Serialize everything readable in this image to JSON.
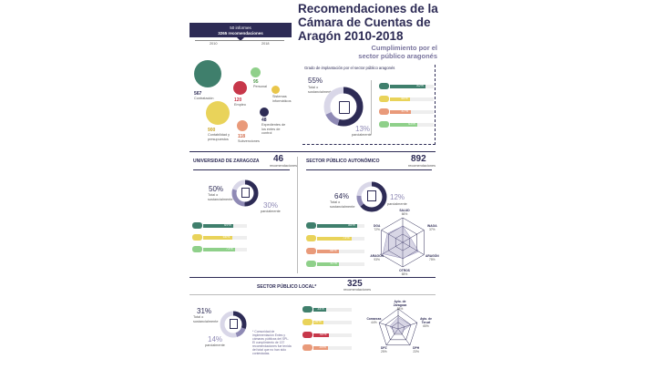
{
  "header": {
    "title_lines": [
      "Recomendaciones de la",
      "Cámara de Cuentas de",
      "Aragón 2010-2018"
    ],
    "subtitle_lines": [
      "Cumplimiento por el",
      "sector público aragonés"
    ]
  },
  "banner": {
    "line1": "50 informes",
    "line2": "3265 recomendaciones"
  },
  "timeline": {
    "start": "2010",
    "end": "2018"
  },
  "categories": [
    {
      "value": "567",
      "label": "Contratación",
      "color": "#3f7f6c"
    },
    {
      "value": "120",
      "label": "Empleo",
      "color": "#c7374a"
    },
    {
      "value": "95",
      "label": "Personal",
      "color": "#8fd08a"
    },
    {
      "value": "85",
      "label": "Sistemas informáticos",
      "color": "#e9c64a"
    },
    {
      "value": "900",
      "label": "Contabilidad y presupuestos",
      "color": "#e9d35a"
    },
    {
      "value": "48",
      "label": "Expedientes de los entes de control",
      "color": "#2d2b55"
    },
    {
      "value": "118",
      "label": "Subvenciones",
      "color": "#e99a7a"
    }
  ],
  "overall": {
    "heading": "Grado de implantación por el sector público aragonés",
    "total_pct": "55%",
    "total_label": "Total o sustancialmente",
    "partial_pct": "13%",
    "partial_label": "parcialmente",
    "bars": [
      {
        "pct": "82%",
        "value": 82,
        "color": "#3f7f6c"
      },
      {
        "pct": "46%",
        "value": 46,
        "color": "#e9d35a"
      },
      {
        "pct": "47%",
        "value": 47,
        "color": "#e99a7a"
      },
      {
        "pct": "63%",
        "value": 63,
        "color": "#8fd08a"
      }
    ]
  },
  "uz": {
    "name": "UNIVERSIDAD DE ZARAGOZA",
    "count": "46",
    "count_label": "recomendaciones",
    "total_pct": "50%",
    "total_label": "Total o sustancialmente",
    "partial_pct": "30%",
    "partial_label": "parcialmente",
    "bars": [
      {
        "pct": "69%",
        "value": 69,
        "color": "#3f7f6c"
      },
      {
        "pct": "66%",
        "value": 66,
        "color": "#e9d35a"
      },
      {
        "pct": "73%",
        "value": 73,
        "color": "#8fd08a"
      }
    ]
  },
  "spa": {
    "name": "SECTOR PÚBLICO AUTONÓMICO",
    "count": "892",
    "count_label": "recomendaciones",
    "total_pct": "64%",
    "total_label": "Total o sustancialmente",
    "partial_pct": "12%",
    "partial_label": "parcialmente",
    "bars": [
      {
        "pct": "85%",
        "value": 85,
        "color": "#3f7f6c"
      },
      {
        "pct": "73%",
        "value": 73,
        "color": "#e9d35a"
      },
      {
        "pct": "46%",
        "value": 46,
        "color": "#e99a7a"
      },
      {
        "pct": "47%",
        "value": 47,
        "color": "#8fd08a"
      }
    ],
    "radar": [
      {
        "name": "SALUD",
        "pct": "66%"
      },
      {
        "name": "INAGA",
        "pct": "37%"
      },
      {
        "name": "ARAGÓN",
        "pct": "75%"
      },
      {
        "name": "OTROS",
        "pct": "65%"
      },
      {
        "name": "ARAGÓN",
        "pct": "93%"
      },
      {
        "name": "DGA",
        "pct": "72%"
      }
    ]
  },
  "spl": {
    "name": "SECTOR PÚBLICO LOCAL*",
    "count": "325",
    "count_label": "recomendaciones",
    "total_pct": "31%",
    "total_label": "Total o sustancialmente",
    "partial_pct": "14%",
    "partial_label": "parcialmente",
    "note": "* Comunidad de implementación Entes y cámaras públicas del SPL. El cumplimiento de 137 recomendaciones fue tenida del total que no han sido contestadas.",
    "bars": [
      {
        "pct": "34%",
        "value": 34,
        "color": "#3f7f6c"
      },
      {
        "pct": "26%",
        "value": 26,
        "color": "#e9d35a"
      },
      {
        "pct": "40%",
        "value": 40,
        "color": "#c7374a"
      },
      {
        "pct": "39%",
        "value": 39,
        "color": "#e99a7a"
      }
    ],
    "radar": [
      {
        "name": "Ayto. de Zaragoza",
        "pct": "58%"
      },
      {
        "name": "Ayto. de Teruel",
        "pct": "65%"
      },
      {
        "name": "DPH",
        "pct": "23%"
      },
      {
        "name": "DPZ",
        "pct": "25%"
      },
      {
        "name": "Comarcas",
        "pct": "44%"
      }
    ]
  }
}
